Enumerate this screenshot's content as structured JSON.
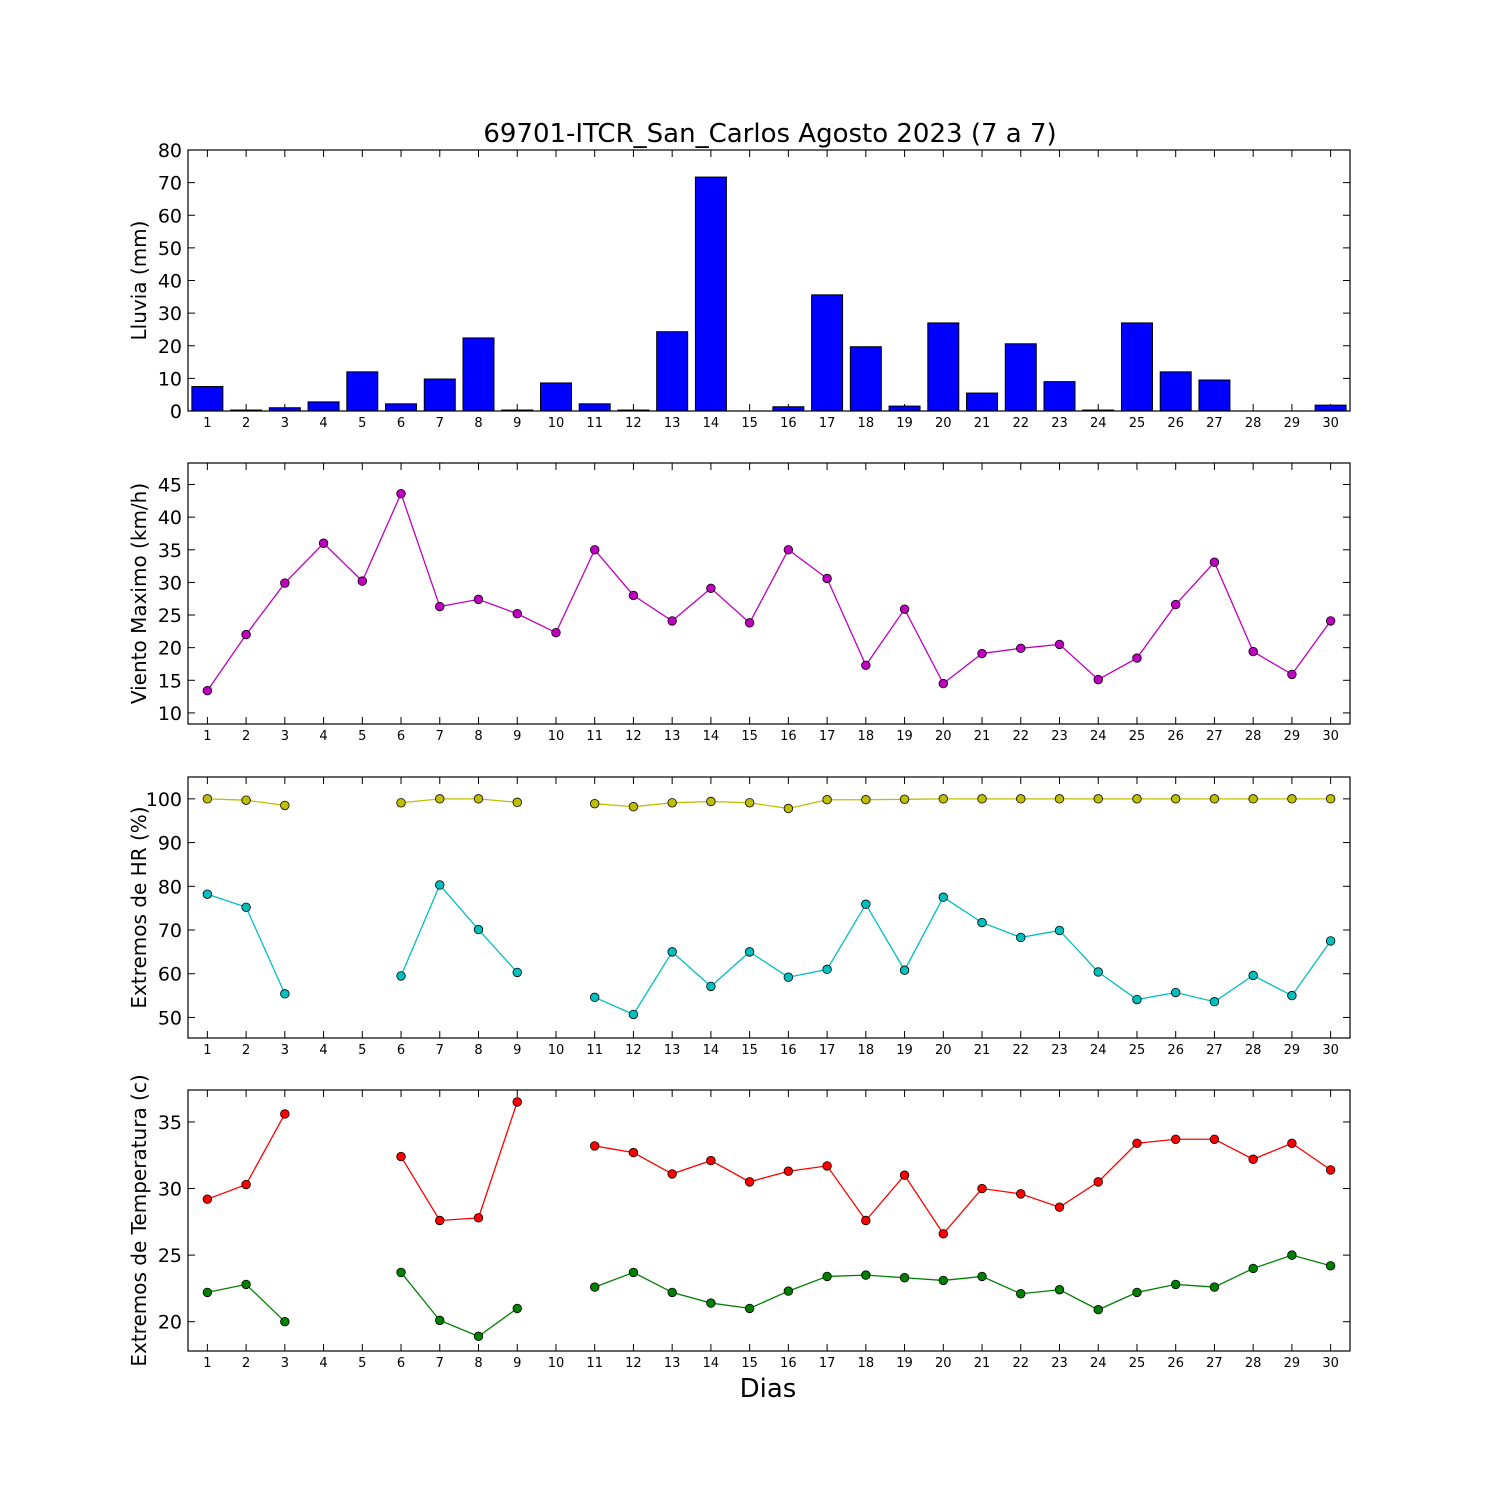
{
  "title": "69701-ITCR_San_Carlos Agosto 2023  (7 a 7)",
  "xlabel": "Dias",
  "chart_data": [
    {
      "type": "bar",
      "ylabel": "Lluvia (mm)",
      "ylim": [
        0,
        80
      ],
      "yticks": [
        0,
        10,
        20,
        30,
        40,
        50,
        60,
        70,
        80
      ],
      "x": [
        1,
        2,
        3,
        4,
        5,
        6,
        7,
        8,
        9,
        10,
        11,
        12,
        13,
        14,
        15,
        16,
        17,
        18,
        19,
        20,
        21,
        22,
        23,
        24,
        25,
        26,
        27,
        28,
        29,
        30
      ],
      "series": [
        {
          "color": "#0000ff",
          "values": [
            7.5,
            0.3,
            1.0,
            2.8,
            12.0,
            2.2,
            9.8,
            22.4,
            0.3,
            8.6,
            2.2,
            0.3,
            24.3,
            71.7,
            0.0,
            1.3,
            35.6,
            19.7,
            1.5,
            27.0,
            5.5,
            20.6,
            9.0,
            0.3,
            27.0,
            12.0,
            9.5,
            0.0,
            0.0,
            1.8
          ]
        }
      ]
    },
    {
      "type": "line",
      "ylabel": "Viento Maximo (km/h)",
      "ylim": [
        8.3,
        48.3
      ],
      "yticks": [
        10,
        15,
        20,
        25,
        30,
        35,
        40,
        45
      ],
      "x": [
        1,
        2,
        3,
        4,
        5,
        6,
        7,
        8,
        9,
        10,
        11,
        12,
        13,
        14,
        15,
        16,
        17,
        18,
        19,
        20,
        21,
        22,
        23,
        24,
        25,
        26,
        27,
        28,
        29,
        30
      ],
      "series": [
        {
          "color": "#bf00bf",
          "values": [
            13.4,
            22.0,
            29.9,
            36.0,
            30.2,
            43.6,
            26.3,
            27.4,
            25.2,
            22.3,
            35.0,
            28.0,
            24.1,
            29.1,
            23.8,
            35.0,
            30.6,
            17.3,
            25.9,
            14.5,
            19.1,
            19.9,
            20.5,
            15.1,
            18.4,
            26.6,
            33.1,
            19.4,
            15.9,
            24.1
          ]
        }
      ]
    },
    {
      "type": "line",
      "ylabel": "Extremos de HR (%)",
      "ylim": [
        45.3,
        105
      ],
      "yticks": [
        50,
        60,
        70,
        80,
        90,
        100
      ],
      "x": [
        1,
        2,
        3,
        4,
        5,
        6,
        7,
        8,
        9,
        10,
        11,
        12,
        13,
        14,
        15,
        16,
        17,
        18,
        19,
        20,
        21,
        22,
        23,
        24,
        25,
        26,
        27,
        28,
        29,
        30
      ],
      "series": [
        {
          "color": "#bfbf00",
          "values": [
            100,
            99.7,
            98.5,
            null,
            null,
            99.1,
            100,
            100,
            99.2,
            null,
            98.9,
            98.2,
            99.1,
            99.4,
            99.1,
            97.8,
            99.8,
            99.8,
            99.9,
            100,
            100,
            100,
            100,
            100,
            100,
            100,
            100,
            100,
            100,
            100
          ]
        },
        {
          "color": "#00bfbf",
          "values": [
            78.2,
            75.2,
            55.4,
            null,
            null,
            59.5,
            80.3,
            70.1,
            60.3,
            null,
            54.6,
            50.7,
            65.0,
            57.1,
            65.0,
            59.2,
            61.0,
            75.9,
            60.8,
            77.5,
            71.7,
            68.3,
            69.9,
            60.4,
            54.1,
            55.7,
            53.6,
            59.6,
            55.0,
            67.5
          ]
        }
      ]
    },
    {
      "type": "line",
      "ylabel": "Extremos de Temperatura (c)",
      "ylim": [
        17.8,
        37.4
      ],
      "yticks": [
        20,
        25,
        30,
        35
      ],
      "x": [
        1,
        2,
        3,
        4,
        5,
        6,
        7,
        8,
        9,
        10,
        11,
        12,
        13,
        14,
        15,
        16,
        17,
        18,
        19,
        20,
        21,
        22,
        23,
        24,
        25,
        26,
        27,
        28,
        29,
        30
      ],
      "series": [
        {
          "color": "#ff0000",
          "values": [
            29.2,
            30.3,
            35.6,
            null,
            null,
            32.4,
            27.6,
            27.8,
            36.5,
            null,
            33.2,
            32.7,
            31.1,
            32.1,
            30.5,
            31.3,
            31.7,
            27.6,
            31.0,
            26.6,
            30.0,
            29.6,
            28.6,
            30.5,
            33.4,
            33.7,
            33.7,
            32.2,
            33.4,
            31.4
          ]
        },
        {
          "color": "#008000",
          "values": [
            22.2,
            22.8,
            20.0,
            null,
            null,
            23.7,
            20.1,
            18.9,
            21.0,
            null,
            22.6,
            23.7,
            22.2,
            21.4,
            21.0,
            22.3,
            23.4,
            23.5,
            23.3,
            23.1,
            23.4,
            22.1,
            22.4,
            20.9,
            22.2,
            22.8,
            22.6,
            24.0,
            25.0,
            24.2
          ]
        }
      ]
    }
  ]
}
